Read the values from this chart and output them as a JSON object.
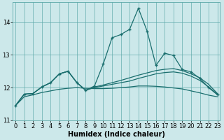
{
  "xlabel": "Humidex (Indice chaleur)",
  "background_color": "#cce8ea",
  "grid_color": "#5ba8a8",
  "line_color": "#1a6e6e",
  "x_values": [
    0,
    1,
    2,
    3,
    4,
    5,
    6,
    7,
    8,
    9,
    10,
    11,
    12,
    13,
    14,
    15,
    16,
    17,
    18,
    19,
    20,
    21,
    22,
    23
  ],
  "series_main": [
    11.45,
    11.8,
    11.82,
    12.02,
    12.15,
    12.42,
    12.5,
    12.15,
    11.92,
    12.05,
    12.72,
    13.52,
    13.62,
    13.78,
    14.42,
    13.72,
    12.68,
    13.05,
    12.98,
    12.55,
    12.48,
    12.28,
    12.0,
    11.78
  ],
  "series_upper": [
    11.45,
    11.8,
    11.82,
    12.02,
    12.15,
    12.42,
    12.5,
    12.15,
    11.92,
    12.02,
    12.08,
    12.15,
    12.22,
    12.3,
    12.38,
    12.45,
    12.52,
    12.56,
    12.58,
    12.52,
    12.42,
    12.3,
    12.1,
    11.82
  ],
  "series_mid": [
    11.45,
    11.8,
    11.82,
    12.02,
    12.15,
    12.42,
    12.5,
    12.15,
    11.92,
    12.0,
    12.05,
    12.1,
    12.15,
    12.2,
    12.28,
    12.35,
    12.42,
    12.46,
    12.48,
    12.44,
    12.35,
    12.22,
    12.02,
    11.8
  ],
  "series_smooth": [
    11.45,
    11.72,
    11.78,
    11.85,
    11.9,
    11.95,
    11.98,
    12.0,
    11.98,
    11.97,
    11.97,
    11.98,
    12.0,
    12.02,
    12.05,
    12.05,
    12.04,
    12.02,
    11.99,
    11.96,
    11.9,
    11.84,
    11.77,
    11.72
  ],
  "ylim": [
    11.0,
    14.6
  ],
  "yticks": [
    11,
    12,
    13,
    14
  ],
  "xticks": [
    0,
    1,
    2,
    3,
    4,
    5,
    6,
    7,
    8,
    9,
    10,
    11,
    12,
    13,
    14,
    15,
    16,
    17,
    18,
    19,
    20,
    21,
    22,
    23
  ],
  "tick_fontsize": 6,
  "xlabel_fontsize": 7
}
